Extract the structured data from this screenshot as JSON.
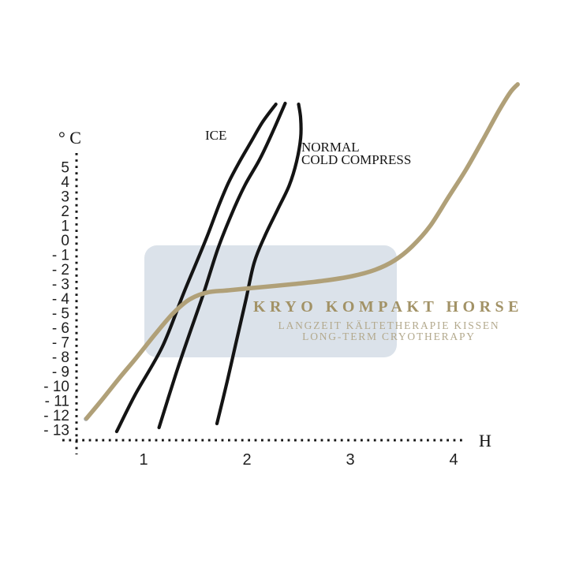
{
  "page": {
    "background": "#ffffff"
  },
  "labels": {
    "y_unit": "° C",
    "x_unit": "H",
    "ice": "ICE",
    "compress_line1": "NORMAL",
    "compress_line2": "COLD COMPRESS",
    "product_title": "KRYO KOMPAKT HORSE",
    "subtitle_de": "LANGZEIT KÄLTETHERAPIE KISSEN",
    "subtitle_en": "LONG-TERM CRYOTHERAPY"
  },
  "colors": {
    "axis": "#161616",
    "curve_black": "#141414",
    "curve_kryo": "#b0a078",
    "curve_kryo_tip": "#a2a5a2",
    "highlight_box": "#dbe2ea",
    "title_text": "#a29266",
    "subtitle_text": "#b3a98d"
  },
  "chart_data": {
    "type": "line",
    "title": "KRYO KOMPAKT HORSE — LANGZEIT KÄLTETHERAPIE KISSEN / LONG-TERM CRYOTHERAPY",
    "xlabel": "H",
    "ylabel": "° C",
    "grid": false,
    "legend_position": "inline-annotations",
    "xlim": [
      0,
      4.7
    ],
    "ylim": [
      -13.5,
      11
    ],
    "x_ticks": [
      {
        "label": "1",
        "value": 1
      },
      {
        "label": "2",
        "value": 2
      },
      {
        "label": "3",
        "value": 3
      },
      {
        "label": "4",
        "value": 4
      }
    ],
    "y_ticks": [
      {
        "label": "5",
        "value": 5
      },
      {
        "label": "4",
        "value": 4
      },
      {
        "label": "3",
        "value": 3
      },
      {
        "label": "2",
        "value": 2
      },
      {
        "label": "1",
        "value": 1
      },
      {
        "label": "0",
        "value": 0
      },
      {
        "label": "- 1",
        "value": -1
      },
      {
        "label": "- 2",
        "value": -2
      },
      {
        "label": "- 3",
        "value": -3
      },
      {
        "label": "- 4",
        "value": -4
      },
      {
        "label": "- 5",
        "value": -5
      },
      {
        "label": "- 6",
        "value": -6
      },
      {
        "label": "- 7",
        "value": -7
      },
      {
        "label": "- 8",
        "value": -8
      },
      {
        "label": "- 9",
        "value": -9
      },
      {
        "label": "- 10",
        "value": -10
      },
      {
        "label": "- 11",
        "value": -11
      },
      {
        "label": "- 12",
        "value": -12
      },
      {
        "label": "- 13",
        "value": -13
      }
    ],
    "series": [
      {
        "id": "ice-1",
        "name": "ICE",
        "color": "#141414",
        "width": 4.2,
        "points": [
          [
            0.74,
            -13.11
          ],
          [
            0.92,
            -10.57
          ],
          [
            1.18,
            -7.32
          ],
          [
            1.38,
            -3.76
          ],
          [
            1.52,
            -1.38
          ],
          [
            1.62,
            0.35
          ],
          [
            1.73,
            2.41
          ],
          [
            1.82,
            3.92
          ],
          [
            1.92,
            5.27
          ],
          [
            2.03,
            6.62
          ],
          [
            2.15,
            8.08
          ],
          [
            2.28,
            9.32
          ]
        ]
      },
      {
        "id": "ice-2",
        "name": "ICE",
        "color": "#141414",
        "width": 4.2,
        "points": [
          [
            1.15,
            -12.84
          ],
          [
            1.31,
            -9.22
          ],
          [
            1.44,
            -6.51
          ],
          [
            1.58,
            -3.65
          ],
          [
            1.72,
            -0.57
          ],
          [
            1.85,
            1.76
          ],
          [
            1.98,
            3.76
          ],
          [
            2.12,
            5.49
          ],
          [
            2.24,
            7.27
          ],
          [
            2.37,
            9.38
          ]
        ]
      },
      {
        "id": "cold-compress",
        "name": "NORMAL COLD COMPRESS",
        "color": "#141414",
        "width": 4.2,
        "points": [
          [
            1.71,
            -12.57
          ],
          [
            1.81,
            -9.65
          ],
          [
            1.89,
            -7.16
          ],
          [
            1.99,
            -4.08
          ],
          [
            2.07,
            -1.54
          ],
          [
            2.17,
            0.24
          ],
          [
            2.3,
            2.14
          ],
          [
            2.41,
            3.76
          ],
          [
            2.48,
            5.38
          ],
          [
            2.52,
            7.0
          ],
          [
            2.52,
            8.35
          ],
          [
            2.5,
            9.32
          ]
        ]
      },
      {
        "id": "kryo-kompakt-horse",
        "name": "KRYO KOMPAKT HORSE",
        "color": "#b0a078",
        "width": 5.5,
        "points": [
          [
            0.45,
            -12.19
          ],
          [
            0.59,
            -11.0
          ],
          [
            0.76,
            -9.49
          ],
          [
            0.92,
            -8.14
          ],
          [
            1.11,
            -6.46
          ],
          [
            1.28,
            -5.05
          ],
          [
            1.44,
            -4.08
          ],
          [
            1.61,
            -3.59
          ],
          [
            1.82,
            -3.43
          ],
          [
            2.13,
            -3.22
          ],
          [
            2.46,
            -3.0
          ],
          [
            2.74,
            -2.78
          ],
          [
            3.02,
            -2.46
          ],
          [
            3.24,
            -2.03
          ],
          [
            3.43,
            -1.38
          ],
          [
            3.6,
            -0.41
          ],
          [
            3.77,
            0.95
          ],
          [
            3.95,
            2.95
          ],
          [
            4.12,
            4.84
          ],
          [
            4.28,
            6.84
          ],
          [
            4.44,
            8.89
          ],
          [
            4.55,
            10.14
          ],
          [
            4.62,
            10.68
          ]
        ]
      }
    ],
    "annotations": [
      {
        "text": "ICE",
        "targets": [
          "ice-1",
          "ice-2"
        ]
      },
      {
        "text": "NORMAL COLD COMPRESS",
        "targets": [
          "cold-compress"
        ]
      },
      {
        "text": "KRYO KOMPAKT HORSE",
        "targets": [
          "kryo-kompakt-horse"
        ]
      },
      {
        "text": "LANGZEIT KÄLTETHERAPIE KISSEN",
        "targets": [
          "kryo-kompakt-horse"
        ]
      },
      {
        "text": "LONG-TERM CRYOTHERAPY",
        "targets": [
          "kryo-kompakt-horse"
        ]
      }
    ]
  }
}
